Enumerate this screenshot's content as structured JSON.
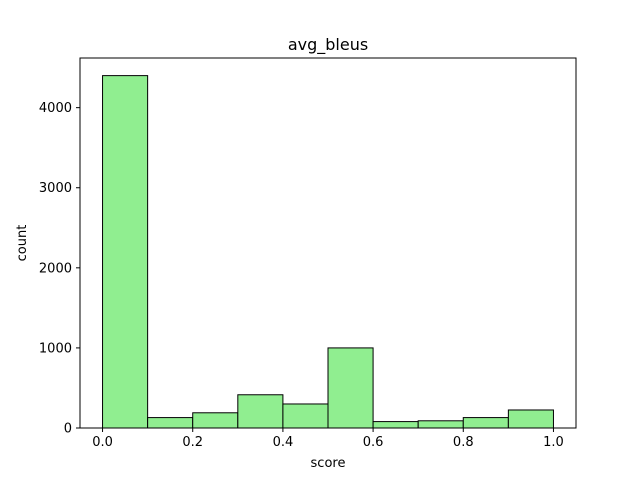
{
  "chart_data": {
    "type": "bar",
    "title": "avg_bleus",
    "xlabel": "score",
    "ylabel": "count",
    "bins": [
      {
        "x0": 0.0,
        "x1": 0.1,
        "count": 4400
      },
      {
        "x0": 0.1,
        "x1": 0.2,
        "count": 130
      },
      {
        "x0": 0.2,
        "x1": 0.3,
        "count": 190
      },
      {
        "x0": 0.3,
        "x1": 0.4,
        "count": 415
      },
      {
        "x0": 0.4,
        "x1": 0.5,
        "count": 300
      },
      {
        "x0": 0.5,
        "x1": 0.6,
        "count": 1000
      },
      {
        "x0": 0.6,
        "x1": 0.7,
        "count": 80
      },
      {
        "x0": 0.7,
        "x1": 0.8,
        "count": 90
      },
      {
        "x0": 0.8,
        "x1": 0.9,
        "count": 130
      },
      {
        "x0": 0.9,
        "x1": 1.0,
        "count": 225
      }
    ],
    "xticks": [
      "0.0",
      "0.2",
      "0.4",
      "0.6",
      "0.8",
      "1.0"
    ],
    "yticks": [
      "0",
      "1000",
      "2000",
      "3000",
      "4000"
    ],
    "xlim": [
      -0.05,
      1.05
    ],
    "ylim": [
      0,
      4620
    ],
    "bar_color": "#90ee90",
    "edge_color": "#000000",
    "grid": false,
    "legend": "none"
  }
}
